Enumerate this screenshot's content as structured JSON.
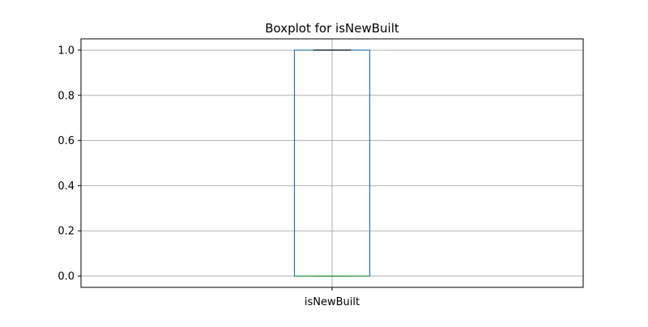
{
  "chart_data": {
    "type": "boxplot",
    "title": "Boxplot for isNewBuilt",
    "xlabel": "",
    "ylabel": "",
    "categories": [
      "isNewBuilt"
    ],
    "ylim": [
      -0.05,
      1.05
    ],
    "yticks": [
      0.0,
      0.2,
      0.4,
      0.6,
      0.8,
      1.0
    ],
    "ytick_labels": [
      "0.0",
      "0.2",
      "0.4",
      "0.6",
      "0.8",
      "1.0"
    ],
    "grid": true,
    "boxes": [
      {
        "category": "isNewBuilt",
        "whisker_low": 0.0,
        "q1": 0.0,
        "median": 0.0,
        "q3": 1.0,
        "whisker_high": 1.0
      }
    ],
    "colors": {
      "box": "#1f77b4",
      "median": "#2ca02c",
      "whisker": "#1f77b4",
      "cap": "#000000",
      "grid": "#b0b0b0",
      "axes": "#000000"
    }
  }
}
